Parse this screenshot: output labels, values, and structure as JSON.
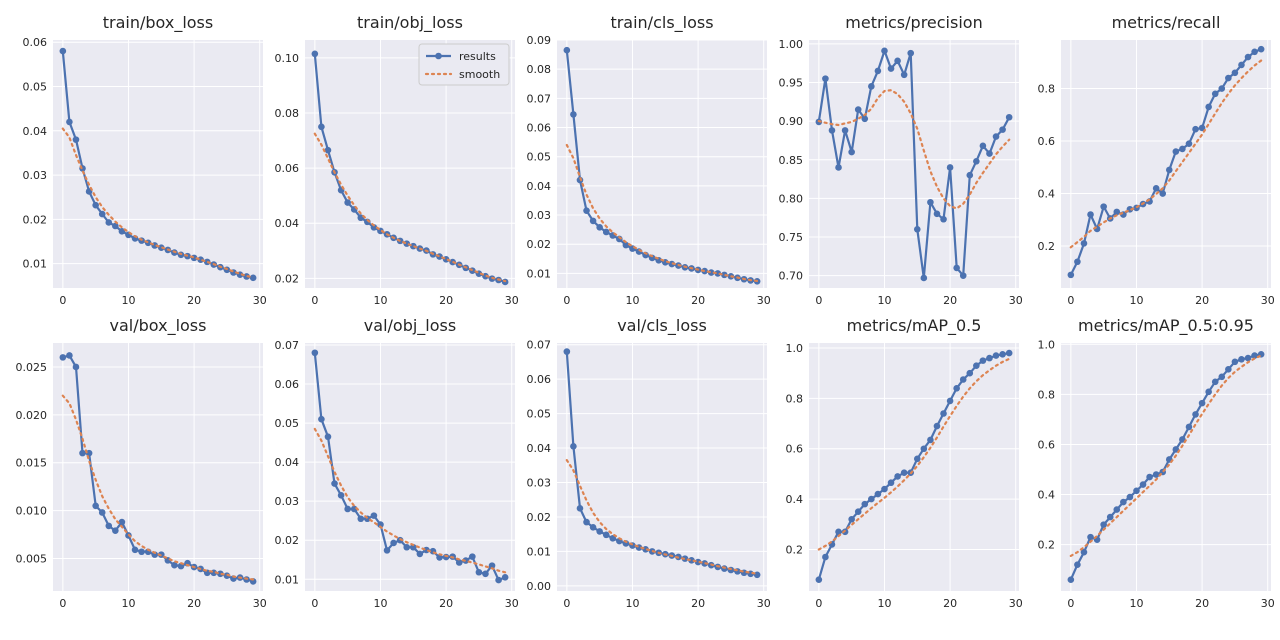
{
  "chart_data": {
    "type": "line",
    "legend": {
      "entries": [
        "results",
        "smooth"
      ],
      "location": "upper-right",
      "panel": "train/obj_loss"
    },
    "colors": {
      "results": "#4c72b0",
      "smooth": "#dd8452",
      "plot_bg": "#eaeaf2",
      "grid": "#ffffff"
    },
    "x_ticks": [
      0,
      10,
      20,
      30
    ],
    "panels": [
      {
        "title": "train/box_loss",
        "xlim": [
          -1.5,
          30.5
        ],
        "ylim": [
          0.0045,
          0.0605
        ],
        "y_ticks": [
          0.01,
          0.02,
          0.03,
          0.04,
          0.05,
          0.06
        ],
        "y_tick_labels": [
          "0.01",
          "0.02",
          "0.03",
          "0.04",
          "0.05",
          "0.06"
        ],
        "results": [
          0.058,
          0.042,
          0.038,
          0.0315,
          0.0263,
          0.0232,
          0.0212,
          0.0193,
          0.0185,
          0.0173,
          0.0165,
          0.0157,
          0.0152,
          0.0147,
          0.0141,
          0.0136,
          0.0131,
          0.0125,
          0.012,
          0.0117,
          0.0113,
          0.0109,
          0.0104,
          0.0098,
          0.0092,
          0.0086,
          0.008,
          0.0075,
          0.0071,
          0.0068
        ],
        "smooth": [
          0.0405,
          0.0385,
          0.0345,
          0.031,
          0.0278,
          0.025,
          0.0228,
          0.021,
          0.0195,
          0.0182,
          0.0171,
          0.0162,
          0.0154,
          0.0148,
          0.0142,
          0.0137,
          0.0132,
          0.0127,
          0.0122,
          0.0118,
          0.0114,
          0.0109,
          0.0104,
          0.0099,
          0.0093,
          0.0088,
          0.0082,
          0.0077,
          0.0072,
          0.0069
        ]
      },
      {
        "title": "train/obj_loss",
        "xlim": [
          -1.5,
          30.5
        ],
        "ylim": [
          0.0165,
          0.1065
        ],
        "y_ticks": [
          0.02,
          0.04,
          0.06,
          0.08,
          0.1
        ],
        "y_tick_labels": [
          "0.02",
          "0.04",
          "0.06",
          "0.08",
          "0.10"
        ],
        "results": [
          0.1015,
          0.075,
          0.0665,
          0.0585,
          0.052,
          0.0475,
          0.045,
          0.042,
          0.0405,
          0.0385,
          0.0372,
          0.036,
          0.0347,
          0.0336,
          0.0326,
          0.0317,
          0.0308,
          0.0301,
          0.0287,
          0.0279,
          0.0269,
          0.0259,
          0.0249,
          0.0238,
          0.0228,
          0.0217,
          0.0208,
          0.0199,
          0.0194,
          0.0187
        ],
        "smooth": [
          0.0725,
          0.0685,
          0.0635,
          0.0585,
          0.054,
          0.05,
          0.0465,
          0.0435,
          0.0412,
          0.0392,
          0.0375,
          0.036,
          0.0347,
          0.0336,
          0.0326,
          0.0317,
          0.0308,
          0.03,
          0.0289,
          0.028,
          0.027,
          0.026,
          0.025,
          0.024,
          0.023,
          0.022,
          0.021,
          0.0202,
          0.0196,
          0.019
        ]
      },
      {
        "title": "train/cls_loss",
        "xlim": [
          -1.5,
          30.5
        ],
        "ylim": [
          0.005,
          0.09
        ],
        "y_ticks": [
          0.01,
          0.02,
          0.03,
          0.04,
          0.05,
          0.06,
          0.07,
          0.08,
          0.09
        ],
        "y_tick_labels": [
          "0.01",
          "0.02",
          "0.03",
          "0.04",
          "0.05",
          "0.06",
          "0.07",
          "0.08",
          "0.09"
        ],
        "results": [
          0.0865,
          0.0645,
          0.042,
          0.0315,
          0.028,
          0.0258,
          0.0242,
          0.023,
          0.0218,
          0.0197,
          0.0185,
          0.0175,
          0.0163,
          0.0153,
          0.0145,
          0.0138,
          0.0132,
          0.0127,
          0.0121,
          0.0117,
          0.0112,
          0.0108,
          0.0103,
          0.01,
          0.0095,
          0.009,
          0.0085,
          0.008,
          0.0076,
          0.0073
        ],
        "smooth": [
          0.054,
          0.0495,
          0.043,
          0.037,
          0.0323,
          0.0288,
          0.0261,
          0.0241,
          0.0224,
          0.0207,
          0.0193,
          0.0181,
          0.0169,
          0.0159,
          0.015,
          0.0142,
          0.0135,
          0.0129,
          0.0123,
          0.0118,
          0.0113,
          0.0108,
          0.0104,
          0.01,
          0.0095,
          0.009,
          0.0086,
          0.0081,
          0.0077,
          0.0074
        ]
      },
      {
        "title": "metrics/precision",
        "xlim": [
          -1.5,
          30.5
        ],
        "ylim": [
          0.684,
          1.005
        ],
        "y_ticks": [
          0.7,
          0.75,
          0.8,
          0.85,
          0.9,
          0.95,
          1.0
        ],
        "y_tick_labels": [
          "0.70",
          "0.75",
          "0.80",
          "0.85",
          "0.90",
          "0.95",
          "1.00"
        ],
        "results": [
          0.899,
          0.955,
          0.888,
          0.84,
          0.888,
          0.86,
          0.915,
          0.903,
          0.945,
          0.965,
          0.991,
          0.968,
          0.978,
          0.96,
          0.988,
          0.76,
          0.697,
          0.795,
          0.78,
          0.773,
          0.84,
          0.71,
          0.7,
          0.83,
          0.848,
          0.868,
          0.858,
          0.88,
          0.889,
          0.905
        ],
        "smooth": [
          0.9,
          0.898,
          0.896,
          0.895,
          0.897,
          0.899,
          0.903,
          0.908,
          0.916,
          0.93,
          0.939,
          0.94,
          0.935,
          0.925,
          0.91,
          0.89,
          0.862,
          0.835,
          0.815,
          0.8,
          0.79,
          0.787,
          0.793,
          0.805,
          0.82,
          0.833,
          0.845,
          0.857,
          0.867,
          0.876
        ]
      },
      {
        "title": "metrics/recall",
        "xlim": [
          -1.5,
          30.5
        ],
        "ylim": [
          0.04,
          0.985
        ],
        "y_ticks": [
          0.2,
          0.4,
          0.6,
          0.8
        ],
        "y_tick_labels": [
          "0.2",
          "0.4",
          "0.6",
          "0.8"
        ],
        "results": [
          0.09,
          0.14,
          0.21,
          0.32,
          0.265,
          0.35,
          0.305,
          0.33,
          0.32,
          0.34,
          0.345,
          0.36,
          0.37,
          0.42,
          0.4,
          0.49,
          0.56,
          0.57,
          0.59,
          0.645,
          0.65,
          0.73,
          0.78,
          0.8,
          0.84,
          0.86,
          0.89,
          0.92,
          0.94,
          0.95
        ],
        "smooth": [
          0.195,
          0.215,
          0.235,
          0.258,
          0.274,
          0.29,
          0.305,
          0.317,
          0.327,
          0.337,
          0.348,
          0.362,
          0.378,
          0.398,
          0.42,
          0.45,
          0.485,
          0.52,
          0.555,
          0.59,
          0.625,
          0.665,
          0.705,
          0.745,
          0.78,
          0.812,
          0.84,
          0.865,
          0.888,
          0.907
        ]
      },
      {
        "title": "val/box_loss",
        "xlim": [
          -1.5,
          30.5
        ],
        "ylim": [
          0.0016,
          0.0275
        ],
        "y_ticks": [
          0.005,
          0.01,
          0.015,
          0.02,
          0.025
        ],
        "y_tick_labels": [
          "0.005",
          "0.010",
          "0.015",
          "0.020",
          "0.025"
        ],
        "results": [
          0.026,
          0.0262,
          0.025,
          0.016,
          0.016,
          0.0105,
          0.0098,
          0.0084,
          0.0079,
          0.0088,
          0.0074,
          0.0059,
          0.0057,
          0.0057,
          0.0054,
          0.0054,
          0.0048,
          0.0043,
          0.0042,
          0.0045,
          0.0041,
          0.0039,
          0.0035,
          0.0035,
          0.0034,
          0.0032,
          0.0029,
          0.003,
          0.0028,
          0.0026
        ],
        "smooth": [
          0.022,
          0.0212,
          0.0195,
          0.0175,
          0.0152,
          0.0132,
          0.0115,
          0.0102,
          0.0091,
          0.0083,
          0.0075,
          0.0068,
          0.0063,
          0.0059,
          0.0056,
          0.0053,
          0.005,
          0.0047,
          0.0045,
          0.0043,
          0.0041,
          0.0039,
          0.0037,
          0.0036,
          0.0034,
          0.0033,
          0.0031,
          0.003,
          0.0029,
          0.0028
        ]
      },
      {
        "title": "val/obj_loss",
        "xlim": [
          -1.5,
          30.5
        ],
        "ylim": [
          0.007,
          0.0705
        ],
        "y_ticks": [
          0.01,
          0.02,
          0.03,
          0.04,
          0.05,
          0.06,
          0.07
        ],
        "y_tick_labels": [
          "0.01",
          "0.02",
          "0.03",
          "0.04",
          "0.05",
          "0.06",
          "0.07"
        ],
        "results": [
          0.068,
          0.051,
          0.0465,
          0.0345,
          0.0315,
          0.028,
          0.028,
          0.0255,
          0.0255,
          0.0263,
          0.024,
          0.0174,
          0.0193,
          0.02,
          0.0182,
          0.0182,
          0.0165,
          0.0175,
          0.0172,
          0.0156,
          0.0157,
          0.0158,
          0.0143,
          0.0148,
          0.0158,
          0.0118,
          0.0114,
          0.0135,
          0.0098,
          0.0105
        ],
        "smooth": [
          0.0485,
          0.0455,
          0.0415,
          0.0375,
          0.034,
          0.031,
          0.0288,
          0.0271,
          0.0257,
          0.0246,
          0.0234,
          0.0222,
          0.0212,
          0.0203,
          0.0195,
          0.0188,
          0.0181,
          0.0175,
          0.0169,
          0.0164,
          0.016,
          0.0156,
          0.0151,
          0.0147,
          0.0143,
          0.0138,
          0.0133,
          0.0128,
          0.0122,
          0.0118
        ]
      },
      {
        "title": "val/cls_loss",
        "xlim": [
          -1.5,
          30.5
        ],
        "ylim": [
          -0.0015,
          0.0705
        ],
        "y_ticks": [
          0.0,
          0.01,
          0.02,
          0.03,
          0.04,
          0.05,
          0.06,
          0.07
        ],
        "y_tick_labels": [
          "0.00",
          "0.01",
          "0.02",
          "0.03",
          "0.04",
          "0.05",
          "0.06",
          "0.07"
        ],
        "results": [
          0.068,
          0.0405,
          0.0225,
          0.0185,
          0.017,
          0.0158,
          0.0148,
          0.0138,
          0.013,
          0.0123,
          0.0117,
          0.0111,
          0.0106,
          0.01,
          0.0096,
          0.0092,
          0.0088,
          0.0084,
          0.0079,
          0.0074,
          0.0069,
          0.0065,
          0.006,
          0.0055,
          0.005,
          0.0046,
          0.0042,
          0.0038,
          0.0035,
          0.0032
        ],
        "smooth": [
          0.0365,
          0.0335,
          0.029,
          0.0248,
          0.0212,
          0.0185,
          0.0165,
          0.015,
          0.0138,
          0.0128,
          0.012,
          0.0113,
          0.0107,
          0.0101,
          0.0096,
          0.0091,
          0.0087,
          0.0082,
          0.0078,
          0.0074,
          0.007,
          0.0066,
          0.0062,
          0.0057,
          0.0053,
          0.0049,
          0.0045,
          0.0041,
          0.0038,
          0.0035
        ]
      },
      {
        "title": "metrics/mAP_0.5",
        "xlim": [
          -1.5,
          30.5
        ],
        "ylim": [
          0.035,
          1.02
        ],
        "y_ticks": [
          0.2,
          0.4,
          0.6,
          0.8,
          1.0
        ],
        "y_tick_labels": [
          "0.2",
          "0.4",
          "0.6",
          "0.8",
          "1.0"
        ],
        "results": [
          0.08,
          0.17,
          0.22,
          0.27,
          0.27,
          0.32,
          0.35,
          0.38,
          0.4,
          0.42,
          0.44,
          0.465,
          0.49,
          0.505,
          0.505,
          0.56,
          0.6,
          0.635,
          0.69,
          0.74,
          0.79,
          0.84,
          0.875,
          0.9,
          0.93,
          0.95,
          0.96,
          0.97,
          0.975,
          0.98
        ],
        "smooth": [
          0.2,
          0.214,
          0.232,
          0.253,
          0.275,
          0.298,
          0.32,
          0.342,
          0.364,
          0.385,
          0.405,
          0.427,
          0.45,
          0.475,
          0.502,
          0.532,
          0.566,
          0.604,
          0.645,
          0.688,
          0.73,
          0.77,
          0.807,
          0.84,
          0.868,
          0.892,
          0.912,
          0.93,
          0.945,
          0.957
        ]
      },
      {
        "title": "metrics/mAP_0.5:0.95",
        "xlim": [
          -1.5,
          30.5
        ],
        "ylim": [
          0.015,
          1.005
        ],
        "y_ticks": [
          0.2,
          0.4,
          0.6,
          0.8,
          1.0
        ],
        "y_tick_labels": [
          "0.2",
          "0.4",
          "0.6",
          "0.8",
          "1.0"
        ],
        "results": [
          0.06,
          0.12,
          0.17,
          0.23,
          0.22,
          0.28,
          0.31,
          0.34,
          0.37,
          0.39,
          0.415,
          0.44,
          0.47,
          0.48,
          0.49,
          0.54,
          0.58,
          0.62,
          0.67,
          0.72,
          0.765,
          0.81,
          0.85,
          0.87,
          0.9,
          0.93,
          0.94,
          0.945,
          0.955,
          0.96
        ],
        "smooth": [
          0.155,
          0.17,
          0.19,
          0.212,
          0.235,
          0.26,
          0.285,
          0.31,
          0.335,
          0.36,
          0.385,
          0.41,
          0.435,
          0.46,
          0.49,
          0.52,
          0.555,
          0.595,
          0.637,
          0.68,
          0.722,
          0.762,
          0.8,
          0.835,
          0.865,
          0.89,
          0.91,
          0.928,
          0.943,
          0.955
        ]
      }
    ]
  }
}
